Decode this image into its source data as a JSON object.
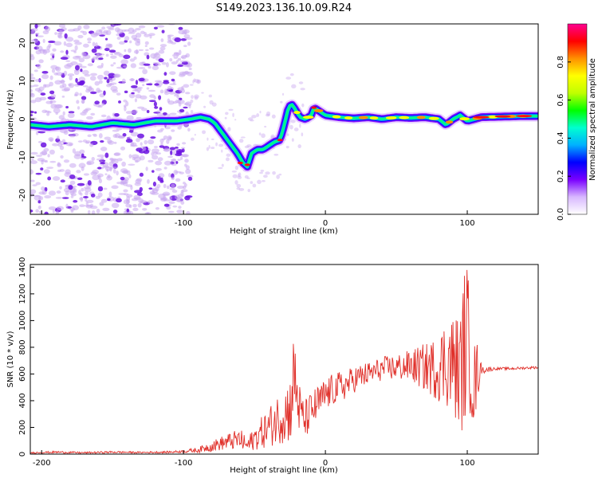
{
  "figure": {
    "title": "S149.2023.136.10.09.R24"
  },
  "colors": {
    "snr_line": "#e0302a",
    "blob_noise": "#c9a8f0",
    "blob_strong": "#6a10e0",
    "background": "#ffffff"
  },
  "chart_data": [
    {
      "type": "heatmap",
      "title": "S149.2023.136.10.09.R24",
      "xlabel": "Height of straight line (km)",
      "ylabel": "Frequency (Hz)",
      "xlim": [
        -208,
        150
      ],
      "ylim": [
        -25,
        25
      ],
      "x_ticks": [
        "-200",
        "-100",
        "0",
        "100"
      ],
      "y_ticks": [
        "20",
        "10",
        "0",
        "-10",
        "-20"
      ],
      "colorbar": {
        "label": "Normalized spectral amplitude",
        "range": [
          0,
          1
        ],
        "ticks": [
          "0.0",
          "0.2",
          "0.4",
          "0.6",
          "0.8"
        ],
        "colormap": [
          "#ffffff",
          "#d8b8ff",
          "#7a00ff",
          "#0000ff",
          "#00b0ff",
          "#00ffd0",
          "#00ff00",
          "#c0ff00",
          "#ffff00",
          "#ff9000",
          "#ff0000",
          "#ff0090"
        ]
      },
      "ridge": {
        "x": [
          -208,
          -195,
          -180,
          -165,
          -150,
          -135,
          -120,
          -105,
          -95,
          -88,
          -82,
          -78,
          -74,
          -70,
          -66,
          -62,
          -58,
          -55,
          -52,
          -48,
          -44,
          -40,
          -36,
          -32,
          -30,
          -28,
          -26,
          -24,
          -22,
          -18,
          -14,
          -10,
          -8,
          -4,
          0,
          10,
          20,
          30,
          40,
          50,
          60,
          70,
          80,
          85,
          90,
          95,
          100,
          110,
          120,
          130,
          140,
          150
        ],
        "y": [
          -1.5,
          -2,
          -1.5,
          -2,
          -1,
          -1.5,
          -0.5,
          -0.5,
          0,
          0.5,
          0,
          -1,
          -3,
          -5,
          -7,
          -9,
          -11.5,
          -12.5,
          -9,
          -8,
          -8,
          -7,
          -6,
          -5.5,
          -3,
          0,
          3,
          4,
          3,
          0.5,
          0,
          1,
          3,
          2,
          1,
          0.5,
          0.2,
          0.5,
          0,
          0.5,
          0.3,
          0.5,
          0,
          -1.5,
          0,
          1,
          -0.5,
          0.5,
          0.6,
          0.7,
          0.8,
          0.8
        ]
      }
    },
    {
      "type": "line",
      "xlabel": "Height of straight line (km)",
      "ylabel": "SNR (10 * v/v)",
      "xlim": [
        -208,
        150
      ],
      "ylim": [
        0,
        1420
      ],
      "x_ticks": [
        "-200",
        "-100",
        "0",
        "100"
      ],
      "y_ticks": [
        "0",
        "200",
        "400",
        "600",
        "800",
        "1000",
        "1200",
        "1400"
      ],
      "series": [
        {
          "x": [
            -208,
            -190,
            -170,
            -150,
            -130,
            -110,
            -100,
            -90,
            -80,
            -70,
            -60,
            -55,
            -50,
            -45,
            -40,
            -35,
            -30,
            -25,
            -22,
            -20,
            -18,
            -15,
            -10,
            -5,
            0,
            5,
            10,
            15,
            20,
            25,
            30,
            40,
            50,
            60,
            70,
            80,
            85,
            90,
            95,
            98,
            100,
            102,
            105,
            108,
            110,
            120,
            130,
            140,
            150
          ],
          "y": [
            10,
            15,
            10,
            15,
            12,
            15,
            20,
            30,
            60,
            90,
            110,
            60,
            120,
            160,
            200,
            250,
            300,
            330,
            600,
            450,
            320,
            250,
            320,
            380,
            440,
            480,
            500,
            520,
            560,
            580,
            600,
            640,
            650,
            660,
            650,
            640,
            700,
            680,
            600,
            800,
            900,
            700,
            500,
            650,
            630,
            640,
            640,
            645,
            650
          ],
          "noise": [
            5,
            8,
            6,
            8,
            6,
            8,
            10,
            20,
            40,
            60,
            80,
            60,
            90,
            120,
            150,
            180,
            220,
            260,
            350,
            280,
            200,
            150,
            150,
            140,
            130,
            120,
            120,
            110,
            100,
            100,
            90,
            90,
            100,
            120,
            180,
            250,
            350,
            380,
            450,
            600,
            550,
            400,
            350,
            200,
            30,
            10,
            10,
            10,
            10
          ]
        }
      ]
    }
  ]
}
